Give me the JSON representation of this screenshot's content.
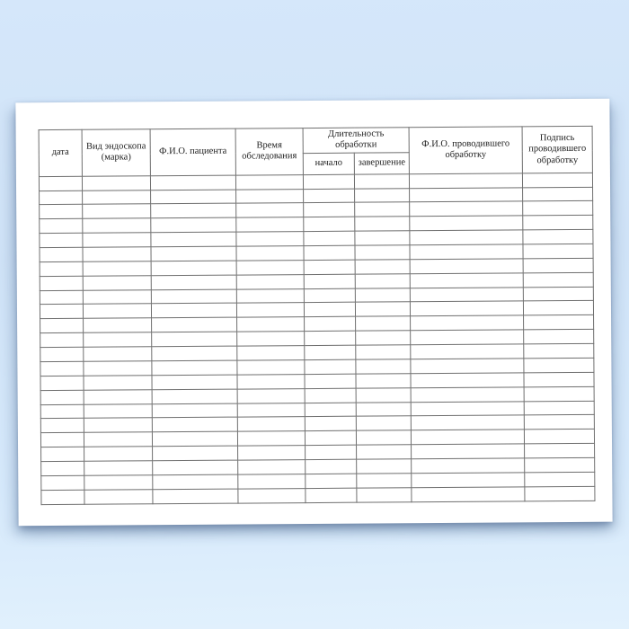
{
  "table": {
    "columns": {
      "date": "дата",
      "endoscope_type": "Вид эндоскопа (марка)",
      "patient_name": "Ф.И.О. пациента",
      "exam_time": "Время обследования",
      "processing_duration": "Длительность обработки",
      "start": "начало",
      "end": "завершение",
      "processor_name": "Ф.И.О. проводившего обработку",
      "processor_signature": "Подпись проводившего обработку"
    },
    "row_count": 23,
    "body_column_count": 8
  },
  "colors": {
    "background_blue": "#d3e6f9",
    "paper": "#ffffff",
    "table_border": "#6f6f6f",
    "text": "#222222"
  }
}
